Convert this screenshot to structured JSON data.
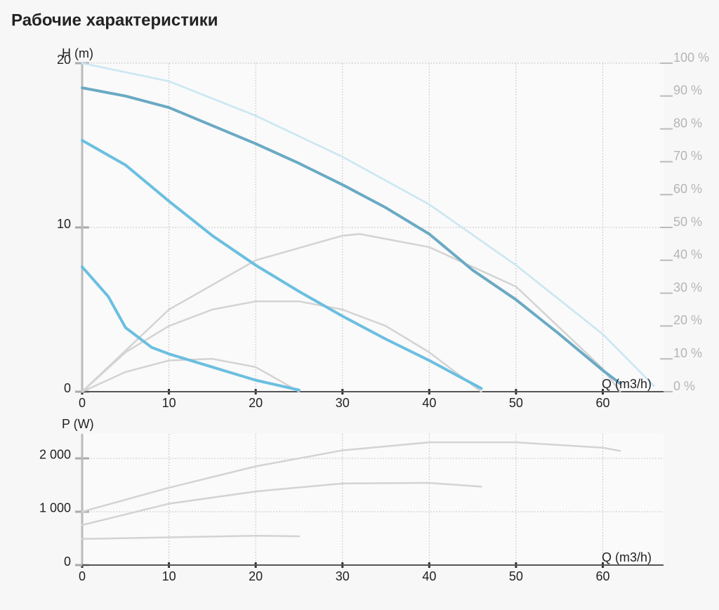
{
  "title": "Рабочие характеристики",
  "chart_data": [
    {
      "type": "line",
      "xlabel": "Q (m3/h)",
      "ylabel": "H (m)",
      "xlim": [
        0,
        67
      ],
      "xticks": [
        0,
        10,
        20,
        30,
        40,
        50,
        60
      ],
      "ylim": [
        0,
        20
      ],
      "yticks": [
        0,
        10,
        20
      ],
      "y2lim": [
        0,
        100
      ],
      "y2ticks": [
        {
          "value": 0,
          "label": "0 %"
        },
        {
          "value": 10,
          "label": "10 %"
        },
        {
          "value": 20,
          "label": "20 %"
        },
        {
          "value": 30,
          "label": "30 %"
        },
        {
          "value": 40,
          "label": "40 %"
        },
        {
          "value": 50,
          "label": "50 %"
        },
        {
          "value": 60,
          "label": "60 %"
        },
        {
          "value": 70,
          "label": "70 %"
        },
        {
          "value": 80,
          "label": "80 %"
        },
        {
          "value": 90,
          "label": "90 %"
        },
        {
          "value": 100,
          "label": "100 %"
        }
      ],
      "grid": true,
      "series": [
        {
          "color": "#c9e6f2",
          "style": "dotted",
          "x": [
            0,
            10,
            20,
            30,
            40,
            50,
            60,
            66
          ],
          "values": [
            20,
            18.9,
            16.8,
            14.3,
            11.4,
            7.7,
            3.5,
            0.3
          ]
        },
        {
          "color": "#d3d3d3",
          "axis": "y2",
          "x": [
            0,
            10,
            20,
            30,
            32,
            40,
            50,
            60,
            62
          ],
          "values": [
            0,
            25,
            40,
            47.5,
            48,
            44,
            32,
            7,
            0
          ]
        },
        {
          "color": "#d3d3d3",
          "axis": "y2",
          "x": [
            0,
            5,
            10,
            15,
            20,
            25,
            30,
            35,
            40,
            46
          ],
          "values": [
            0,
            12,
            20,
            25,
            27.5,
            27.5,
            25,
            20,
            12,
            0
          ]
        },
        {
          "color": "#d3d3d3",
          "axis": "y2",
          "x": [
            0,
            5,
            10,
            15,
            20,
            25
          ],
          "values": [
            0,
            6,
            9.5,
            10,
            7.5,
            0
          ]
        },
        {
          "color": "#6aaac4",
          "x": [
            0,
            5,
            10,
            15,
            20,
            25,
            30,
            35,
            40,
            45,
            50,
            55,
            60,
            62
          ],
          "values": [
            18.5,
            18.0,
            17.3,
            16.2,
            15.1,
            13.9,
            12.6,
            11.2,
            9.6,
            7.4,
            5.6,
            3.5,
            1.3,
            0.5
          ]
        },
        {
          "color": "#6bbfe0",
          "x": [
            0,
            5,
            10,
            15,
            20,
            25,
            30,
            35,
            40,
            46
          ],
          "values": [
            15.3,
            13.8,
            11.6,
            9.5,
            7.7,
            6.1,
            4.6,
            3.2,
            1.9,
            0.2
          ]
        },
        {
          "color": "#6bbfe0",
          "x": [
            0,
            3,
            5,
            8,
            10,
            15,
            20,
            25
          ],
          "values": [
            7.6,
            5.8,
            3.9,
            2.7,
            2.3,
            1.5,
            0.7,
            0.1
          ]
        }
      ]
    },
    {
      "type": "line",
      "xlabel": "Q (m3/h)",
      "ylabel": "P (W)",
      "xlim": [
        0,
        67
      ],
      "xticks": [
        0,
        10,
        20,
        30,
        40,
        50,
        60
      ],
      "ylim": [
        0,
        2460
      ],
      "yticks": [
        0,
        {
          "value": 1000,
          "label": "1 000"
        },
        {
          "value": 2000,
          "label": "2 000"
        }
      ],
      "grid": true,
      "series": [
        {
          "color": "#d3d3d3",
          "x": [
            0,
            10,
            20,
            30,
            40,
            50,
            60,
            62
          ],
          "values": [
            1000,
            1450,
            1850,
            2150,
            2300,
            2300,
            2200,
            2140
          ]
        },
        {
          "color": "#d3d3d3",
          "x": [
            0,
            10,
            20,
            30,
            40,
            46
          ],
          "values": [
            750,
            1150,
            1380,
            1530,
            1540,
            1470
          ]
        },
        {
          "color": "#d3d3d3",
          "x": [
            0,
            10,
            20,
            25
          ],
          "values": [
            490,
            520,
            550,
            540
          ]
        }
      ]
    }
  ]
}
